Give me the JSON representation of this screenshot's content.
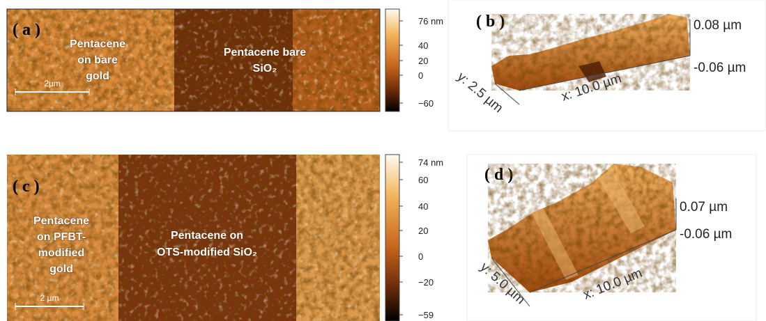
{
  "panels": [
    {
      "label": "( a )",
      "annotations": [
        [
          "Pentacene",
          "on bare",
          "gold"
        ],
        [
          "Pentacene bare",
          "SiO₂"
        ]
      ],
      "scale_bar": "2µm",
      "colorbar_ticks": [
        "76 nm",
        "40",
        "20",
        "0",
        "−60"
      ]
    },
    {
      "label": "( b )",
      "z_top": "0.08 µm",
      "z_bottom": "-0.06 µm",
      "x_axis": "x: 10.0 µm",
      "y_axis": "y: 2.5 µm"
    },
    {
      "label": "( c )",
      "annotations": [
        [
          "Pentacene",
          "on PFBT-",
          "modified",
          "gold"
        ],
        [
          "Pentacene on",
          "OTS-modified SiO₂"
        ]
      ],
      "scale_bar": "2 µm",
      "colorbar_ticks": [
        "74 nm",
        "60",
        "40",
        "20",
        "0",
        "−20",
        "−59"
      ]
    },
    {
      "label": "( d )",
      "z_top": "0.07 µm",
      "z_bottom": "-0.06 µm",
      "x_axis": "x: 10.0 µm",
      "y_axis": "y: 5.0 µm"
    }
  ]
}
